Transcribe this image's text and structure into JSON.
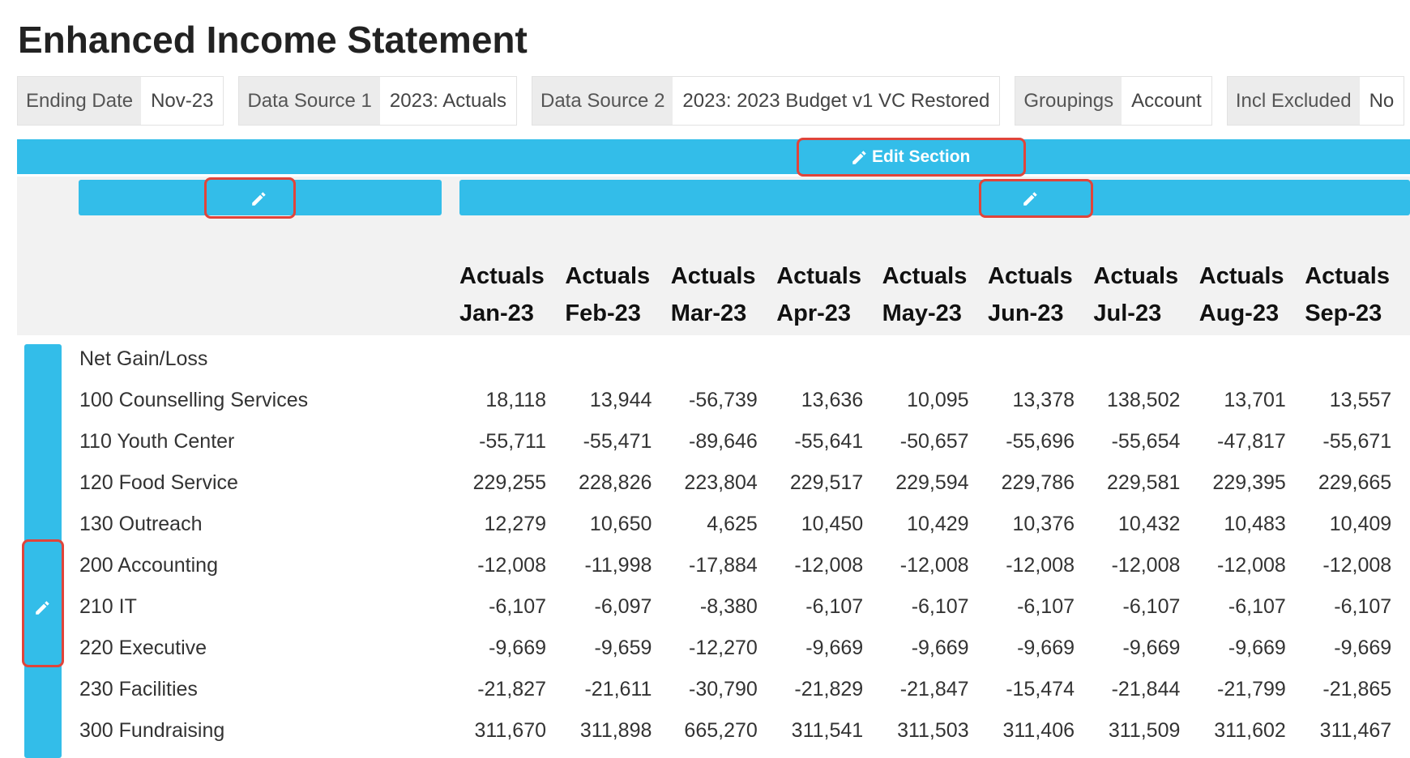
{
  "header": {
    "title": "Enhanced Income Statement"
  },
  "filters": [
    {
      "label": "Ending Date",
      "value": "Nov-23"
    },
    {
      "label": "Data Source 1",
      "value": "2023: Actuals"
    },
    {
      "label": "Data Source 2",
      "value": "2023: 2023 Budget v1 VC Restored"
    },
    {
      "label": "Groupings",
      "value": "Account"
    },
    {
      "label": "Incl Excluded",
      "value": "No"
    }
  ],
  "edit_section": "Edit Section",
  "table": {
    "columns": [
      "Actuals Jan-23",
      "Actuals Feb-23",
      "Actuals Mar-23",
      "Actuals Apr-23",
      "Actuals May-23",
      "Actuals Jun-23",
      "Actuals Jul-23",
      "Actuals Aug-23",
      "Actuals Sep-23"
    ],
    "section": "Net Gain/Loss",
    "rows": [
      {
        "label": "100 Counselling Services",
        "values": [
          "18,118",
          "13,944",
          "-56,739",
          "13,636",
          "10,095",
          "13,378",
          "138,502",
          "13,701",
          "13,557"
        ]
      },
      {
        "label": "110 Youth Center",
        "values": [
          "-55,711",
          "-55,471",
          "-89,646",
          "-55,641",
          "-50,657",
          "-55,696",
          "-55,654",
          "-47,817",
          "-55,671"
        ]
      },
      {
        "label": "120 Food Service",
        "values": [
          "229,255",
          "228,826",
          "223,804",
          "229,517",
          "229,594",
          "229,786",
          "229,581",
          "229,395",
          "229,665"
        ]
      },
      {
        "label": "130 Outreach",
        "values": [
          "12,279",
          "10,650",
          "4,625",
          "10,450",
          "10,429",
          "10,376",
          "10,432",
          "10,483",
          "10,409"
        ]
      },
      {
        "label": "200 Accounting",
        "values": [
          "-12,008",
          "-11,998",
          "-17,884",
          "-12,008",
          "-12,008",
          "-12,008",
          "-12,008",
          "-12,008",
          "-12,008"
        ]
      },
      {
        "label": "210 IT",
        "values": [
          "-6,107",
          "-6,097",
          "-8,380",
          "-6,107",
          "-6,107",
          "-6,107",
          "-6,107",
          "-6,107",
          "-6,107"
        ]
      },
      {
        "label": "220 Executive",
        "values": [
          "-9,669",
          "-9,659",
          "-12,270",
          "-9,669",
          "-9,669",
          "-9,669",
          "-9,669",
          "-9,669",
          "-9,669"
        ]
      },
      {
        "label": "230 Facilities",
        "values": [
          "-21,827",
          "-21,611",
          "-30,790",
          "-21,829",
          "-21,847",
          "-15,474",
          "-21,844",
          "-21,799",
          "-21,865"
        ]
      },
      {
        "label": "300 Fundraising",
        "values": [
          "311,670",
          "311,898",
          "665,270",
          "311,541",
          "311,503",
          "311,406",
          "311,509",
          "311,602",
          "311,467"
        ]
      }
    ]
  }
}
